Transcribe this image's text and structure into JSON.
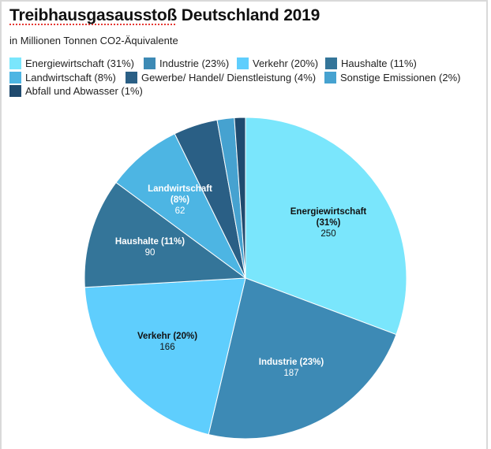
{
  "title_main": "Treibhausgasausstoß",
  "title_rest": " Deutschland 2019",
  "subtitle": "in Millionen Tonnen CO2-Äquivalente",
  "chart_data": {
    "type": "pie",
    "title": "Treibhausgasausstoß Deutschland 2019",
    "subtitle": "in Millionen Tonnen CO2-Äquivalente",
    "legend_position": "top",
    "start": "12 o'clock, clockwise",
    "slices": [
      {
        "name": "Energiewirtschaft",
        "percent": 31,
        "value": 250,
        "value_label": "250",
        "pct_label": "(31%)",
        "legend": "Energiewirtschaft (31%)",
        "color": "#7ae6fc",
        "text_color": "#111111"
      },
      {
        "name": "Industrie",
        "percent": 23,
        "value": 187,
        "value_label": "187",
        "pct_label": "(23%)",
        "legend": "Industrie (23%)",
        "color": "#3d8ab5",
        "text_color": "#ffffff"
      },
      {
        "name": "Verkehr",
        "percent": 20,
        "value": 166,
        "value_label": "166",
        "pct_label": "(20%)",
        "legend": "Verkehr (20%)",
        "color": "#5fcefd",
        "text_color": "#111111"
      },
      {
        "name": "Haushalte",
        "percent": 11,
        "value": 90,
        "value_label": "90",
        "pct_label": "(11%)",
        "legend": "Haushalte (11%)",
        "color": "#347599",
        "text_color": "#ffffff"
      },
      {
        "name": "Landwirtschaft",
        "percent": 8,
        "value": 62,
        "value_label": "62",
        "pct_label": "(8%)",
        "legend": "Landwirtschaft (8%)",
        "color": "#4db5e3",
        "text_color": "#ffffff"
      },
      {
        "name": "Gewerbe/ Handel/ Dienstleistung",
        "percent": 4,
        "value": 36,
        "legend": "Gewerbe/ Handel/ Dienstleistung (4%)",
        "color": "#2a5f85"
      },
      {
        "name": "Sonstige Emissionen",
        "percent": 2,
        "value": 14,
        "legend": "Sonstige Emissionen (2%)",
        "color": "#46a2d0"
      },
      {
        "name": "Abfall und Abwasser",
        "percent": 1,
        "value": 9,
        "legend": "Abfall und Abwasser (1%)",
        "color": "#1f4a6e"
      }
    ]
  }
}
